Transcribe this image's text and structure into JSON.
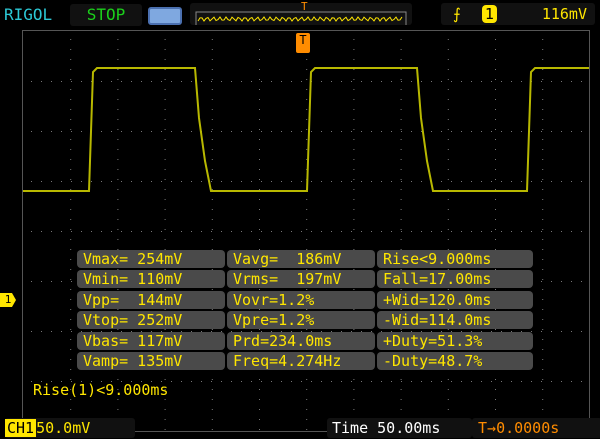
{
  "header": {
    "brand": "RIGOL",
    "run_state": "STOP",
    "trigger_marker": "T",
    "trigger_edge_icon": "rising-edge-icon",
    "trigger_channel": "1",
    "trigger_level": "116mV"
  },
  "colors": {
    "trace": "#b8b800",
    "text": "#ffe600",
    "trigger": "#ff8c00",
    "brand": "#2cc9d6",
    "stop": "#1bd01b"
  },
  "measurements": [
    [
      "Vmax= 254mV",
      "Vavg=  186mV",
      "Rise<9.000ms"
    ],
    [
      "Vmin= 110mV",
      "Vrms=  197mV",
      "Fall=17.00ms"
    ],
    [
      "Vpp=  144mV",
      "Vovr=1.2%",
      "+Wid=120.0ms"
    ],
    [
      "Vtop= 252mV",
      "Vpre=1.2%",
      "-Wid=114.0ms"
    ],
    [
      "Vbas= 117mV",
      "Prd=234.0ms",
      "+Duty=51.3%"
    ],
    [
      "Vamp= 135mV",
      "Freq=4.274Hz",
      "-Duty=48.7%"
    ]
  ],
  "status_line": "Rise(1)<9.000ms",
  "channel_marker": "1",
  "footer": {
    "channel": "CH1",
    "volts_div": "50.0mV",
    "timebase": "Time 50.00ms",
    "trigger_offset": "0.0000s"
  }
}
